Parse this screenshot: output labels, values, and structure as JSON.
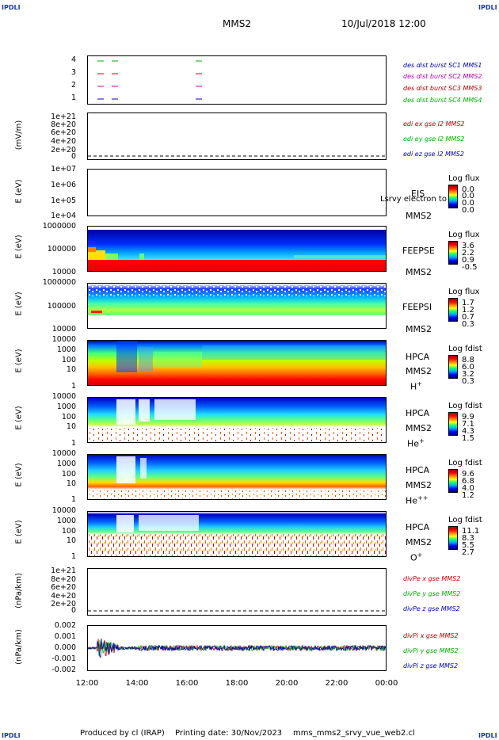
{
  "header": {
    "corner_label": "IPDLI",
    "title": "MMS2",
    "datetime": "10/Jul/2018 12:00"
  },
  "footer": {
    "producer": "Produced by cl (IRAP)",
    "printing": "Printing date: 30/Nov/2023",
    "filename": "mms_mms2_srvy_vue_web2.cl"
  },
  "x_axis": {
    "ticks": [
      "12:00",
      "14:00",
      "16:00",
      "18:00",
      "20:00",
      "22:00",
      "00:00"
    ]
  },
  "panels": {
    "burst": {
      "yticks": [
        "4",
        "3",
        "2",
        "1"
      ],
      "labels": [
        {
          "text": "des dist burst SC1 MMS1",
          "color": "#0000c0"
        },
        {
          "text": "des dist burst SC2 MMS2",
          "color": "#c000c0"
        },
        {
          "text": "des dist burst SC3 MMS3",
          "color": "#c00000"
        },
        {
          "text": "des dist burst SC4 MMS4",
          "color": "#00b000"
        }
      ]
    },
    "edi": {
      "ylabel": "(mV/m)",
      "yticks": [
        "1e+21",
        "8e+20",
        "6e+20",
        "4e+20",
        "2e+20",
        "0"
      ],
      "labels": [
        {
          "text": "edi ex gse l2 MMS2",
          "color": "#c00000"
        },
        {
          "text": "edi ey gse l2 MMS2",
          "color": "#00b000"
        },
        {
          "text": "edi ez gse l2 MMS2",
          "color": "#0000c0"
        }
      ]
    },
    "eis": {
      "ylabel": "E (eV)",
      "yticks": [
        "1e+07",
        "1e+06",
        "1e+05",
        "1e+04"
      ],
      "instrument": "EIS",
      "sublabel": "MMS2",
      "overlay": "Lsrvy electron to",
      "cb_title": "Log flux",
      "cb_ticks": [
        "0.0",
        "0.0",
        "0.0",
        "0.0"
      ]
    },
    "feepse": {
      "ylabel": "E (eV)",
      "yticks": [
        "1000000",
        "100000",
        "10000"
      ],
      "instrument": "FEEPSE",
      "sublabel": "MMS2",
      "cb_title": "Log flux",
      "cb_ticks": [
        "3.6",
        "2.2",
        "0.9",
        "-0.5"
      ]
    },
    "feepsi": {
      "ylabel": "E (eV)",
      "yticks": [
        "1000000",
        "100000",
        "10000"
      ],
      "instrument": "FEEPSI",
      "sublabel": "MMS2",
      "cb_title": "Log flux",
      "cb_ticks": [
        "1.7",
        "1.2",
        "0.7",
        "0.3"
      ]
    },
    "hpca_h": {
      "ylabel": "E (eV)",
      "yticks": [
        "10000",
        "1000",
        "100",
        "10",
        "1"
      ],
      "instrument": "HPCA",
      "sublabel": "MMS2",
      "species": "H",
      "charge": "+",
      "cb_title": "Log fdist",
      "cb_ticks": [
        "8.8",
        "6.0",
        "3.2",
        "0.3"
      ]
    },
    "hpca_he": {
      "ylabel": "E (eV)",
      "yticks": [
        "10000",
        "1000",
        "100",
        "10",
        "1"
      ],
      "instrument": "HPCA",
      "sublabel": "MMS2",
      "species": "He",
      "charge": "+",
      "cb_title": "Log fdist",
      "cb_ticks": [
        "9.9",
        "7.1",
        "4.3",
        "1.5"
      ]
    },
    "hpca_hepp": {
      "ylabel": "E (eV)",
      "yticks": [
        "10000",
        "1000",
        "100",
        "10",
        "1"
      ],
      "instrument": "HPCA",
      "sublabel": "MMS2",
      "species": "He",
      "charge": "++",
      "cb_title": "Log fdist",
      "cb_ticks": [
        "9.6",
        "6.8",
        "4.0",
        "1.2"
      ]
    },
    "hpca_o": {
      "ylabel": "E (eV)",
      "yticks": [
        "10000",
        "1000",
        "100",
        "10",
        "1"
      ],
      "instrument": "HPCA",
      "sublabel": "MMS2",
      "species": "O",
      "charge": "+",
      "cb_title": "Log fdist",
      "cb_ticks": [
        "11.1",
        "8.3",
        "5.5",
        "2.7"
      ]
    },
    "divpe": {
      "ylabel": "(nPa/km)",
      "yticks": [
        "1e+21",
        "8e+20",
        "6e+20",
        "4e+20",
        "2e+20",
        "0"
      ],
      "labels": [
        {
          "text": "divPe x gse MMS2",
          "color": "#c00000"
        },
        {
          "text": "divPe y gse MMS2",
          "color": "#00b000"
        },
        {
          "text": "divPe z gse MMS2",
          "color": "#0000c0"
        }
      ]
    },
    "divpi": {
      "ylabel": "(nPa/km)",
      "yticks": [
        "0.002",
        "0.001",
        "0.000",
        "-0.001",
        "-0.002"
      ],
      "labels": [
        {
          "text": "divPi x gse MMS2",
          "color": "#c00000"
        },
        {
          "text": "divPi y gse MMS2",
          "color": "#00b000"
        },
        {
          "text": "divPi z gse MMS2",
          "color": "#0000c0"
        }
      ]
    }
  },
  "chart_data": {
    "type": "heatmap",
    "title": "MMS2",
    "xlabel": "",
    "xlim": [
      "12:00",
      "00:00"
    ],
    "series": [
      {
        "name": "des dist burst SC1 MMS1",
        "y": 1,
        "x": [
          "12:30",
          "12:50",
          "16:30"
        ]
      },
      {
        "name": "des dist burst SC2 MMS2",
        "y": 2,
        "x": [
          "12:30",
          "12:50",
          "16:30"
        ]
      },
      {
        "name": "des dist burst SC3 MMS3",
        "y": 3,
        "x": [
          "12:30",
          "12:50",
          "16:30"
        ]
      },
      {
        "name": "des dist burst SC4 MMS4",
        "y": 4,
        "x": [
          "12:30",
          "12:50",
          "16:30"
        ]
      }
    ],
    "divpi_ylim": [
      -0.002,
      0.002
    ],
    "edi_ylim": [
      0,
      1e+21
    ],
    "divpe_ylim": [
      0,
      1e+21
    ]
  }
}
